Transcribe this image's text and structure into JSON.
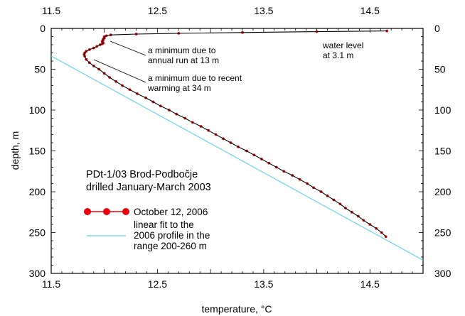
{
  "chart_data": {
    "type": "line",
    "xlabel": "temperature, °C",
    "ylabel": "depth, m",
    "xlim": [
      11.5,
      15.0
    ],
    "ylim": [
      0,
      300
    ],
    "y_inverted": true,
    "x_ticks": [
      "11.5",
      "12.5",
      "13.5",
      "14.5"
    ],
    "x_tick_values": [
      11.5,
      12.5,
      13.5,
      14.5
    ],
    "y_ticks": [
      "0",
      "50",
      "100",
      "150",
      "200",
      "250",
      "300"
    ],
    "y_tick_values": [
      0,
      50,
      100,
      150,
      200,
      250,
      300
    ],
    "grid": false,
    "legend_placement": "lower-left",
    "series": [
      {
        "name": "October 12, 2006",
        "color": "#e8000b",
        "marker": "circle",
        "x": [
          14.66,
          14.0,
          13.3,
          12.7,
          12.3,
          12.06,
          12.02,
          12.0,
          12.0,
          12.0,
          11.99,
          11.99,
          11.985,
          11.98,
          11.985,
          11.99,
          11.98,
          11.96,
          11.93,
          11.9,
          11.86,
          11.83,
          11.815,
          11.81,
          11.815,
          11.83,
          11.86,
          11.9,
          11.95,
          12.0,
          12.05,
          12.11,
          12.17,
          12.24,
          12.31,
          12.39,
          12.46,
          12.53,
          12.61,
          12.68,
          12.76,
          12.83,
          12.91,
          12.98,
          13.05,
          13.12,
          13.19,
          13.26,
          13.34,
          13.41,
          13.48,
          13.55,
          13.62,
          13.69,
          13.77,
          13.84,
          13.91,
          13.97,
          14.04,
          14.1,
          14.16,
          14.22,
          14.27,
          14.33,
          14.39,
          14.44,
          14.5,
          14.56,
          14.61,
          14.65
        ],
        "y": [
          3.1,
          4,
          5,
          6,
          7,
          8,
          9,
          10,
          11,
          12,
          13,
          14,
          15,
          16,
          17,
          18,
          19,
          20,
          22,
          24,
          26,
          28,
          30,
          32,
          34,
          38,
          42,
          46,
          50,
          55,
          60,
          65,
          70,
          75,
          80,
          85,
          90,
          95,
          100,
          105,
          110,
          115,
          120,
          125,
          130,
          135,
          140,
          145,
          150,
          155,
          160,
          165,
          170,
          175,
          180,
          185,
          190,
          195,
          200,
          205,
          210,
          215,
          220,
          225,
          230,
          235,
          240,
          245,
          250,
          255
        ]
      },
      {
        "name": "linear fit to the 2006 profile in the range 200-260 m",
        "color": "#5fd3e8",
        "x": [
          11.5,
          15.0
        ],
        "y": [
          33.8,
          283.8
        ]
      }
    ],
    "annotations": [
      {
        "text": "a minimum due to annual run at 13 m",
        "lines": [
          "a minimum due to",
          "annual run at 13 m"
        ],
        "x": 12.0,
        "y": 13
      },
      {
        "text": "a minimum due to recent warming at 34 m",
        "lines": [
          "a minimum due to recent",
          "warming at 34 m"
        ],
        "x": 11.81,
        "y": 34
      },
      {
        "text": "water level at 3.1 m",
        "lines": [
          "water level",
          "at 3.1 m"
        ]
      },
      {
        "text": "PDt-1/03 Brod-Podbočje drilled January-March 2003",
        "lines": [
          "PDt-1/03 Brod-Podbočje",
          "drilled January-March 2003"
        ]
      }
    ],
    "legend": {
      "entries": [
        {
          "lines": [
            "October 12, 2006"
          ]
        },
        {
          "lines": [
            "linear fit to the",
            "2006 profile in the",
            "range 200-260 m"
          ]
        }
      ]
    }
  }
}
